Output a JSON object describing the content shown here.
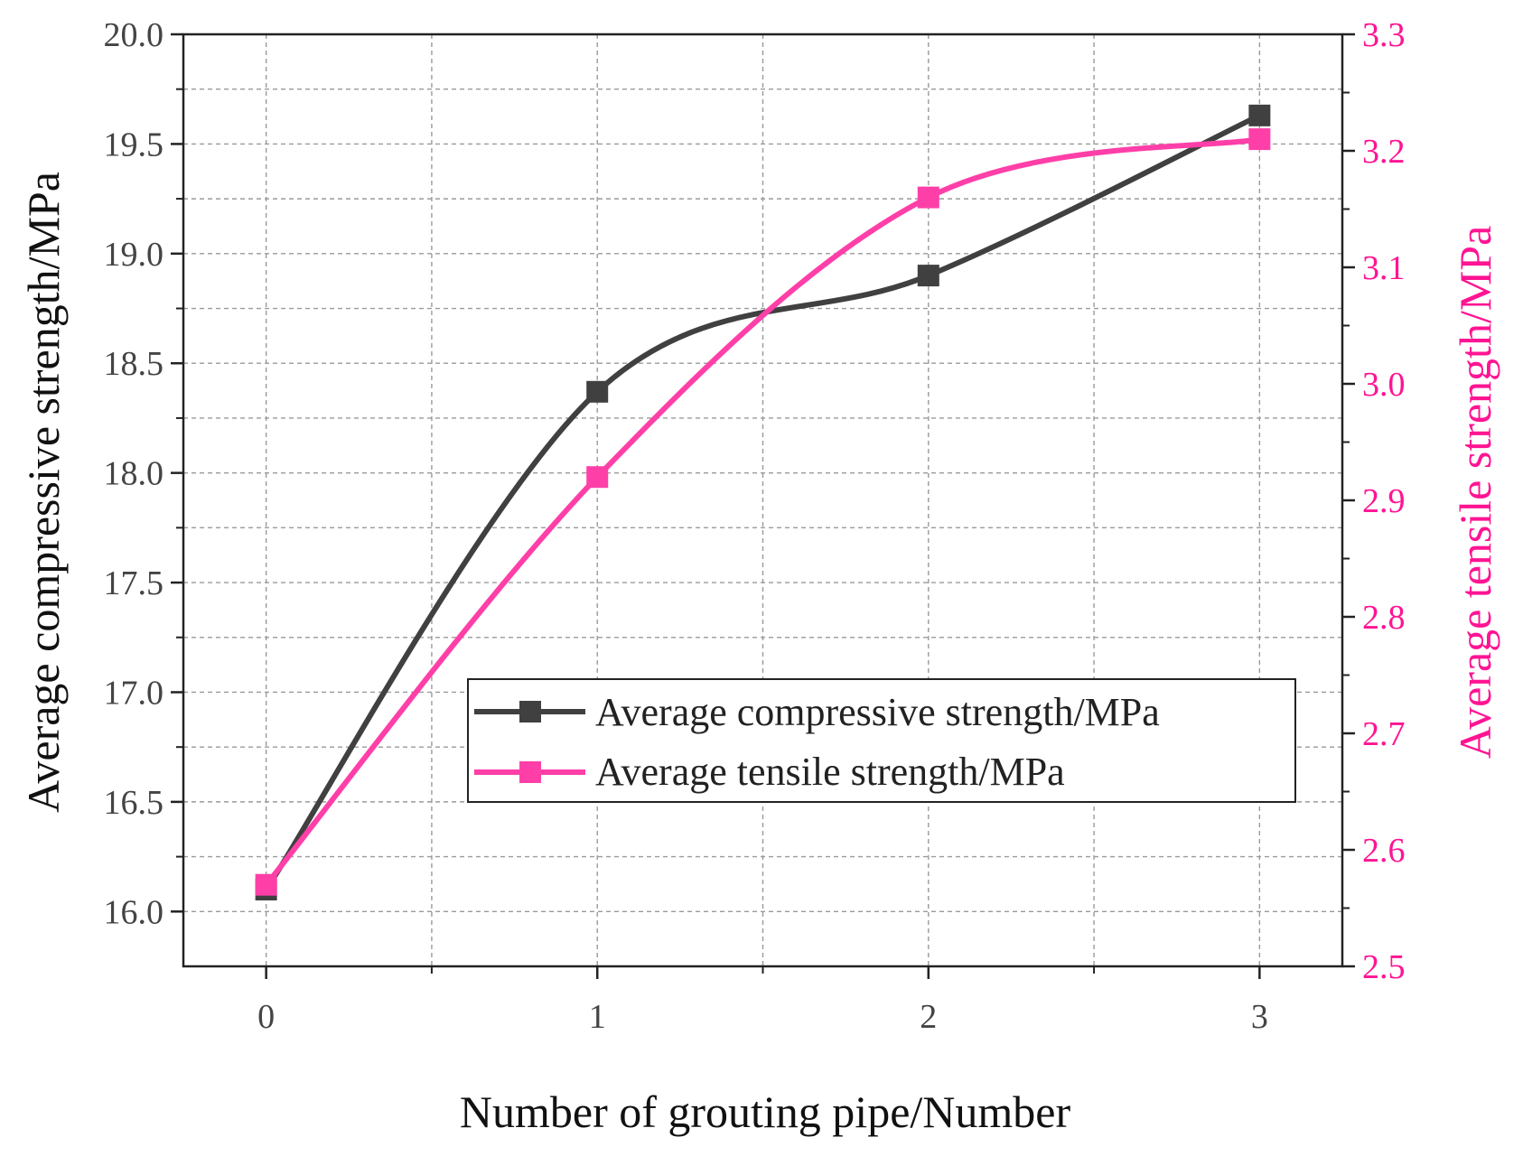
{
  "chart_data": {
    "type": "line",
    "title": "",
    "xlabel": "Number of grouting pipe/Number",
    "ylabel": "Average compressive strength/MPa",
    "y2label": "Average tensile strength/MPa",
    "x": [
      0,
      1,
      2,
      3
    ],
    "x_ticks": [
      "0",
      "1",
      "2",
      "3"
    ],
    "xlim": [
      -0.25,
      3.25
    ],
    "ylim": [
      15.75,
      20.0
    ],
    "y_ticks": [
      "16.0",
      "16.5",
      "17.0",
      "17.5",
      "18.0",
      "18.5",
      "19.0",
      "19.5",
      "20.0"
    ],
    "y2lim": [
      2.5,
      3.3
    ],
    "y2_ticks": [
      "2.5",
      "2.6",
      "2.7",
      "2.8",
      "2.9",
      "3.0",
      "3.1",
      "3.2",
      "3.3"
    ],
    "grid": true,
    "legend_position": "center-right",
    "series": [
      {
        "name": "Average compressive strength/MPa",
        "axis": "left",
        "color": "#404040",
        "marker": "square",
        "smooth": true,
        "values": [
          16.1,
          18.37,
          18.9,
          19.63
        ]
      },
      {
        "name": "Average tensile strength/MPa",
        "axis": "right",
        "color": "#ff3fa8",
        "marker": "square",
        "smooth": true,
        "values": [
          2.57,
          2.92,
          3.16,
          3.21
        ]
      }
    ]
  }
}
